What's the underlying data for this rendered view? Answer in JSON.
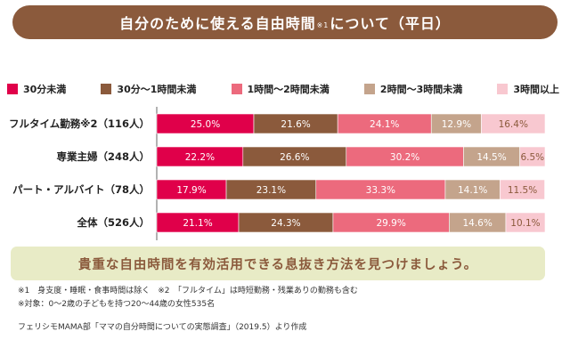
{
  "header": {
    "title_main": "自分のために使える自由時間",
    "title_note": "※1",
    "title_tail": "について（平日）"
  },
  "chart_data": {
    "type": "bar",
    "orientation": "horizontal",
    "stacked": true,
    "legend_position": "top",
    "categories": [
      "フルタイム勤務※2（116人）",
      "専業主婦（248人）",
      "パート・アルバイト（78人）",
      "全体（526人）"
    ],
    "series": [
      {
        "name": "30分未満",
        "color": "#e0004a",
        "values": [
          25.0,
          22.2,
          17.9,
          21.1
        ],
        "labels": [
          "25.0%",
          "22.2%",
          "17.9%",
          "21.1%"
        ]
      },
      {
        "name": "30分〜1時間未満",
        "color": "#8b5a3c",
        "values": [
          21.6,
          26.6,
          23.1,
          24.3
        ],
        "labels": [
          "21.6%",
          "26.6%",
          "23.1%",
          "24.3%"
        ]
      },
      {
        "name": "1時間〜2時間未満",
        "color": "#ec6a7d",
        "values": [
          24.1,
          30.2,
          33.3,
          29.9
        ],
        "labels": [
          "24.1%",
          "30.2%",
          "33.3%",
          "29.9%"
        ]
      },
      {
        "name": "2時間〜3時間未満",
        "color": "#c4a48c",
        "values": [
          12.9,
          14.5,
          14.1,
          14.6
        ],
        "labels": [
          "12.9%",
          "14.5%",
          "14.1%",
          "14.6%"
        ]
      },
      {
        "name": "3時間以上",
        "color": "#f8c8d0",
        "values": [
          16.4,
          6.5,
          11.5,
          10.1
        ],
        "labels": [
          "16.4%",
          "6.5%",
          "11.5%",
          "10.1%"
        ]
      }
    ],
    "label_colors": [
      "#ffffff",
      "#ffffff",
      "#ffffff",
      "#ffffff",
      "#8b5a3c"
    ]
  },
  "callout": "貴重な自由時間を有効活用できる息抜き方法を見つけましょう。",
  "footnotes": [
    "※1　身支度・睡眠・食事時間は除く　※2　「フルタイム」は時短勤務・残業ありの勤務も含む",
    "※対象：0〜2歳の子どもを持つ20〜44歳の女性535名"
  ],
  "source": "フェリシモMAMA部「ママの自分時間についての実態調査」（2019.5）より作成"
}
